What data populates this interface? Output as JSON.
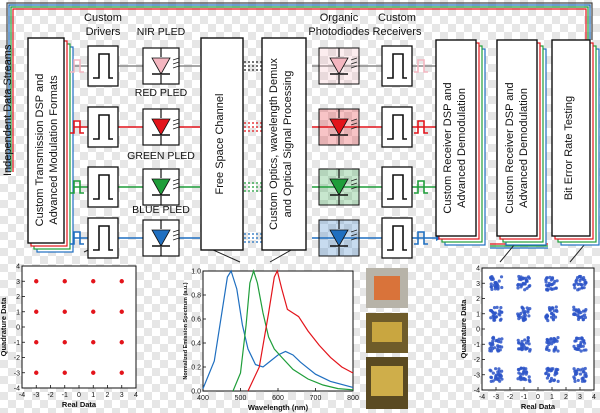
{
  "side_label": "Independent Data Streams",
  "headers": {
    "drivers": [
      "Custom",
      "Drivers"
    ],
    "photodiodes": [
      "Organic",
      "Photodiodes"
    ],
    "receivers": [
      "Custom",
      "Receivers"
    ]
  },
  "pled_labels": [
    "NIR PLED",
    "RED PLED",
    "GREEN PLED",
    "BLUE PLED"
  ],
  "blocks": {
    "tx_dsp": [
      "Custom Transmission DSP and",
      "Advanced Modulation Formats"
    ],
    "channel": [
      "Free Space Channel"
    ],
    "optics": [
      "Custom Optics, wavelength Demux",
      "and Optical Signal Processing"
    ],
    "rx_dsp_1": [
      "Custom Receiver DSP and",
      "Advanced Demodulation"
    ],
    "rx_dsp_2": [
      "Custom Receiver DSP and",
      "Advanced Demodulation"
    ],
    "ber": [
      "Bit Error Rate Testing"
    ]
  },
  "colors": {
    "nir": "#f4b6c0",
    "red": "#e3141b",
    "green": "#1f9e3a",
    "blue": "#1f6fc0",
    "blue_fill": "#2d6bd3",
    "gray": "#888888"
  },
  "chart_data": [
    {
      "type": "scatter",
      "title": "",
      "xlabel": "Real Data",
      "ylabel": "Quadrature Data",
      "xlim": [
        -4,
        4
      ],
      "ylim": [
        -4,
        4
      ],
      "xticks": [
        "-4",
        "-3",
        "-2",
        "-1",
        "0",
        "1",
        "2",
        "3",
        "4"
      ],
      "yticks": [
        "-4",
        "-3",
        "-2",
        "-1",
        "0",
        "1",
        "2",
        "3",
        "4"
      ],
      "points": [
        [
          -3,
          3
        ],
        [
          -1,
          3
        ],
        [
          1,
          3
        ],
        [
          3,
          3
        ],
        [
          -3,
          1
        ],
        [
          -1,
          1
        ],
        [
          1,
          1
        ],
        [
          3,
          1
        ],
        [
          -3,
          -1
        ],
        [
          -1,
          -1
        ],
        [
          1,
          -1
        ],
        [
          3,
          -1
        ],
        [
          -3,
          -3
        ],
        [
          -1,
          -3
        ],
        [
          1,
          -3
        ],
        [
          3,
          -3
        ]
      ],
      "color": "#e3141b"
    },
    {
      "type": "line",
      "title": "",
      "xlabel": "Wavelength (nm)",
      "ylabel": "Normalized Emission Spectrum (a.u.)",
      "xlim": [
        400,
        800
      ],
      "ylim": [
        0,
        1
      ],
      "xticks": [
        "400",
        "500",
        "600",
        "700",
        "800"
      ],
      "yticks": [
        "0.0",
        "0.2",
        "0.4",
        "0.6",
        "0.8",
        "1.0"
      ],
      "series": [
        {
          "color": "#1f6fc0",
          "points": [
            [
              400,
              0.02
            ],
            [
              430,
              0.25
            ],
            [
              450,
              0.65
            ],
            [
              465,
              0.95
            ],
            [
              475,
              1.0
            ],
            [
              490,
              0.85
            ],
            [
              505,
              0.55
            ],
            [
              520,
              0.35
            ],
            [
              540,
              0.22
            ],
            [
              560,
              0.2
            ],
            [
              580,
              0.25
            ],
            [
              600,
              0.3
            ],
            [
              620,
              0.33
            ],
            [
              640,
              0.3
            ],
            [
              660,
              0.24
            ],
            [
              700,
              0.14
            ],
            [
              740,
              0.08
            ],
            [
              800,
              0.03
            ]
          ]
        },
        {
          "color": "#1f9e3a",
          "points": [
            [
              480,
              0.0
            ],
            [
              500,
              0.15
            ],
            [
              515,
              0.55
            ],
            [
              525,
              0.9
            ],
            [
              535,
              1.0
            ],
            [
              545,
              0.9
            ],
            [
              560,
              0.65
            ],
            [
              575,
              0.45
            ],
            [
              590,
              0.35
            ],
            [
              610,
              0.28
            ],
            [
              640,
              0.18
            ],
            [
              680,
              0.1
            ],
            [
              720,
              0.05
            ],
            [
              760,
              0.02
            ],
            [
              800,
              0.01
            ]
          ]
        },
        {
          "color": "#e3141b",
          "points": [
            [
              520,
              0.0
            ],
            [
              550,
              0.2
            ],
            [
              575,
              0.65
            ],
            [
              590,
              0.95
            ],
            [
              598,
              1.0
            ],
            [
              610,
              0.85
            ],
            [
              625,
              0.68
            ],
            [
              640,
              0.65
            ],
            [
              655,
              0.62
            ],
            [
              680,
              0.5
            ],
            [
              710,
              0.38
            ],
            [
              740,
              0.28
            ],
            [
              770,
              0.2
            ],
            [
              800,
              0.15
            ]
          ]
        }
      ]
    },
    {
      "type": "scatter",
      "title": "",
      "xlabel": "Real Data",
      "ylabel": "Quadrature Data",
      "xlim": [
        -4,
        4
      ],
      "ylim": [
        -4,
        4
      ],
      "xticks": [
        "-4",
        "-3",
        "-2",
        "-1",
        "0",
        "1",
        "2",
        "3",
        "4"
      ],
      "yticks": [
        "-4",
        "-3",
        "-2",
        "-1",
        "0",
        "1",
        "2",
        "3",
        "4"
      ],
      "clusters": [
        [
          -3,
          3
        ],
        [
          -1,
          3
        ],
        [
          1,
          3
        ],
        [
          3,
          3
        ],
        [
          -3,
          1
        ],
        [
          -1,
          1
        ],
        [
          1,
          1
        ],
        [
          3,
          1
        ],
        [
          -3,
          -1
        ],
        [
          -1,
          -1
        ],
        [
          1,
          -1
        ],
        [
          3,
          -1
        ],
        [
          -3,
          -3
        ],
        [
          -1,
          -3
        ],
        [
          1,
          -3
        ],
        [
          3,
          -3
        ]
      ],
      "color": "#2d55c8"
    }
  ]
}
